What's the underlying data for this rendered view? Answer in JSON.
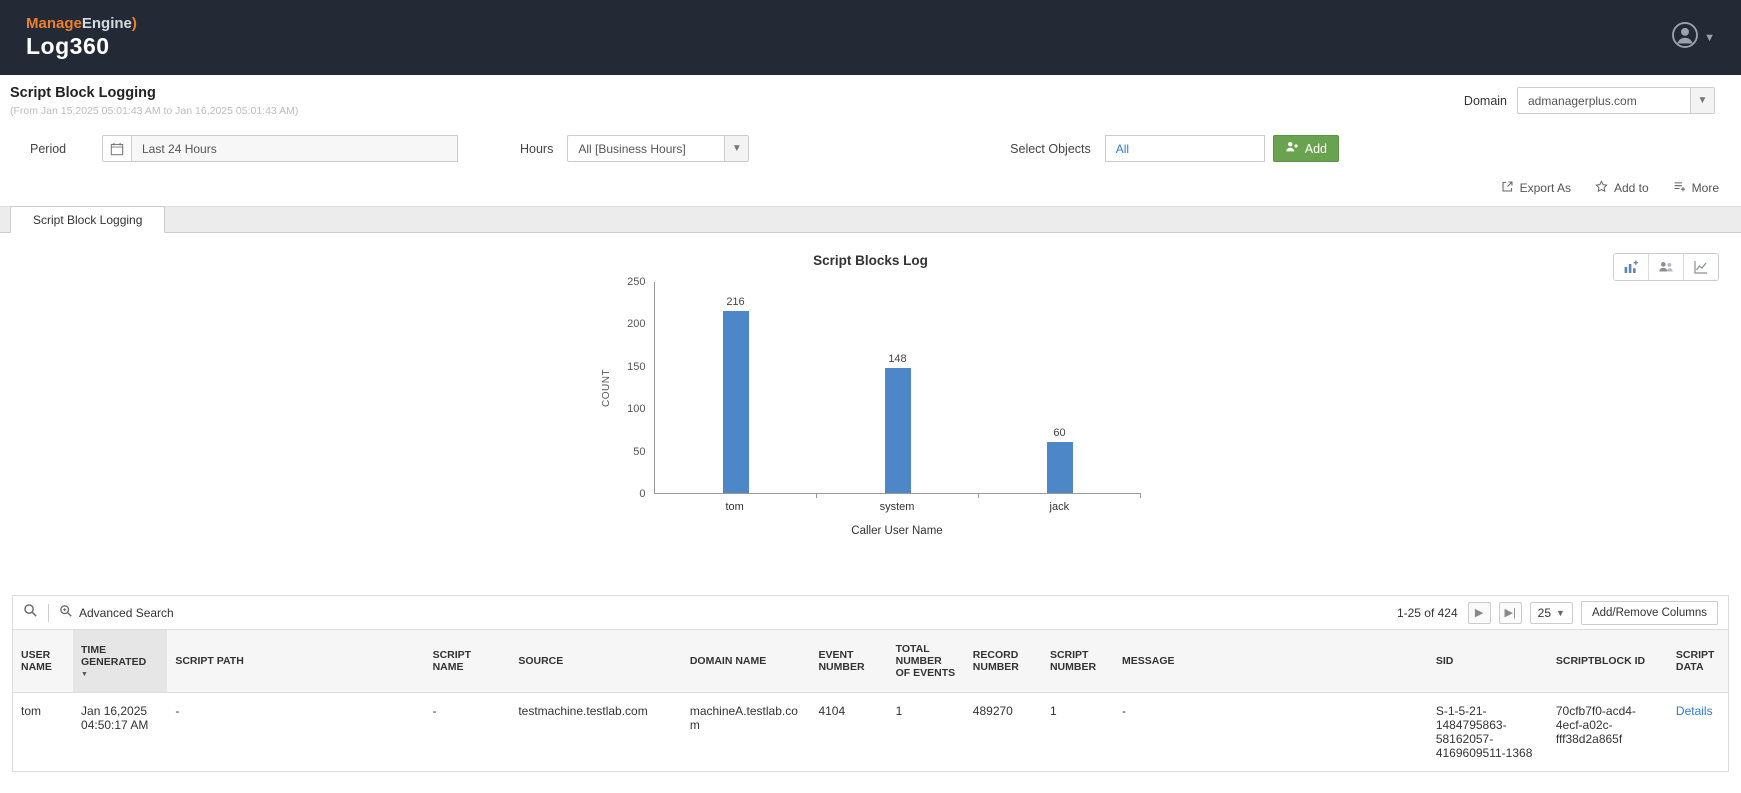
{
  "header": {
    "brand_manage": "Manage",
    "brand_engine": "Engine",
    "brand_mark": ")",
    "brand_product": "Log360"
  },
  "page": {
    "title": "Script Block Logging",
    "subtitle": "(From Jan 15,2025 05:01:43 AM to Jan 16,2025 05:01:43 AM)",
    "domain_label": "Domain",
    "domain_value": "admanagerplus.com"
  },
  "filters": {
    "period_label": "Period",
    "period_value": "Last 24 Hours",
    "hours_label": "Hours",
    "hours_value": "All [Business Hours]",
    "select_objects_label": "Select Objects",
    "select_objects_value": "All",
    "add_button_label": "Add"
  },
  "actions": {
    "export_as": "Export As",
    "add_to": "Add to",
    "more": "More"
  },
  "tab": {
    "label": "Script Block Logging"
  },
  "chart_data": {
    "type": "bar",
    "title": "Script Blocks Log",
    "categories": [
      "tom",
      "system",
      "jack"
    ],
    "values": [
      216,
      148,
      60
    ],
    "xlabel": "Caller User Name",
    "ylabel": "COUNT",
    "ylim": [
      0,
      250
    ],
    "yticks": [
      0,
      50,
      100,
      150,
      200,
      250
    ],
    "bar_color": "#4d87c7",
    "grid": false,
    "legend": false
  },
  "table_toolbar": {
    "advanced_search_label": "Advanced Search",
    "pagination_text": "1-25 of 424",
    "page_size": "25",
    "add_remove_columns_label": "Add/Remove Columns"
  },
  "table": {
    "columns": [
      "USER NAME",
      "TIME GENERATED",
      "SCRIPT PATH",
      "SCRIPT NAME",
      "SOURCE",
      "DOMAIN NAME",
      "EVENT NUMBER",
      "TOTAL NUMBER OF EVENTS",
      "RECORD NUMBER",
      "SCRIPT NUMBER",
      "MESSAGE",
      "SID",
      "SCRIPTBLOCK ID",
      "SCRIPT DATA"
    ],
    "sorted_column": "TIME GENERATED",
    "rows": [
      [
        "tom",
        "Jan 16,2025 04:50:17 AM",
        "-",
        "-",
        "testmachine.testlab.com",
        "machineA.testlab.com",
        "4104",
        "1",
        "489270",
        "1",
        "-",
        "S-1-5-21-1484795863-58162057-4169609511-1368",
        "70cfb7f0-acd4-4ecf-a02c-fff38d2a865f",
        "Details"
      ]
    ]
  }
}
